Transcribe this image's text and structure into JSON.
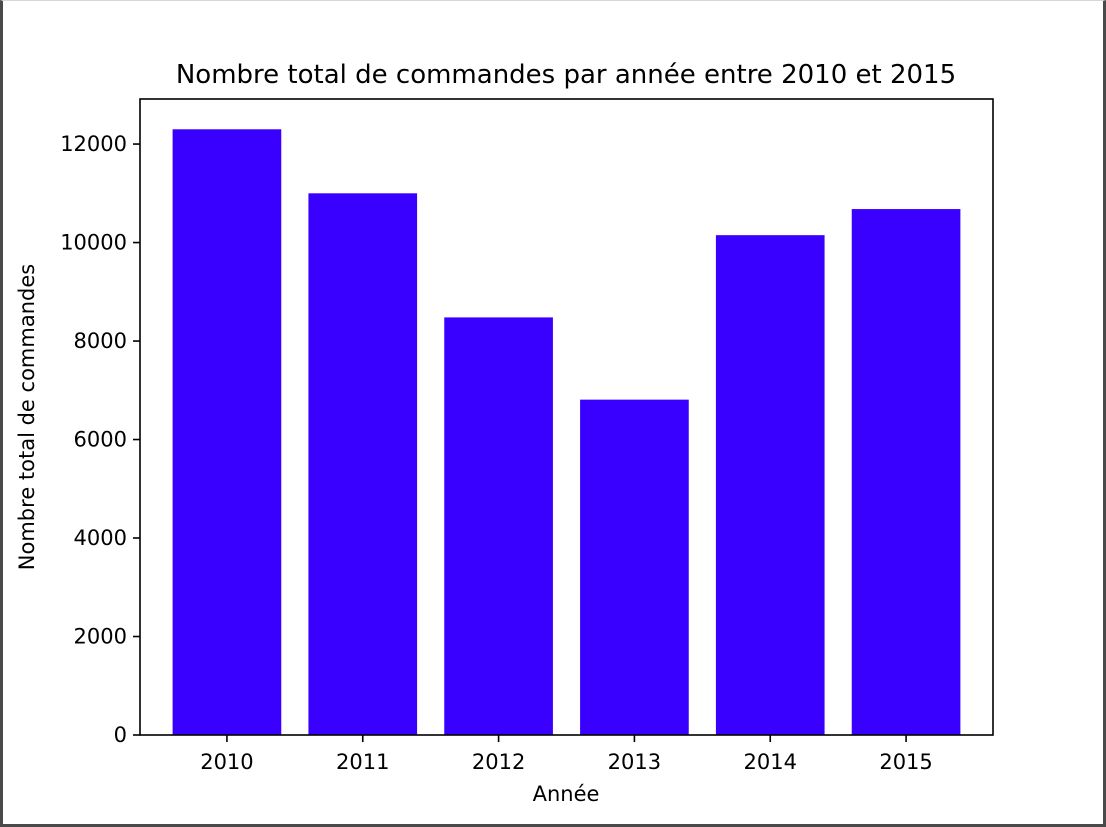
{
  "chart_data": {
    "type": "bar",
    "title": "Nombre total de commandes par année entre 2010 et 2015",
    "xlabel": "Année",
    "ylabel": "Nombre total de commandes",
    "categories": [
      "2010",
      "2011",
      "2012",
      "2013",
      "2014",
      "2015"
    ],
    "values": [
      12300,
      11000,
      8480,
      6810,
      10150,
      10680
    ],
    "ylim": [
      0,
      12915
    ],
    "yticks": [
      0,
      2000,
      4000,
      6000,
      8000,
      10000,
      12000
    ],
    "ytick_labels": [
      "0",
      "2000",
      "4000",
      "6000",
      "8000",
      "10000",
      "12000"
    ],
    "bar_color": "#3a00ff",
    "grid": false,
    "legend": "none"
  }
}
